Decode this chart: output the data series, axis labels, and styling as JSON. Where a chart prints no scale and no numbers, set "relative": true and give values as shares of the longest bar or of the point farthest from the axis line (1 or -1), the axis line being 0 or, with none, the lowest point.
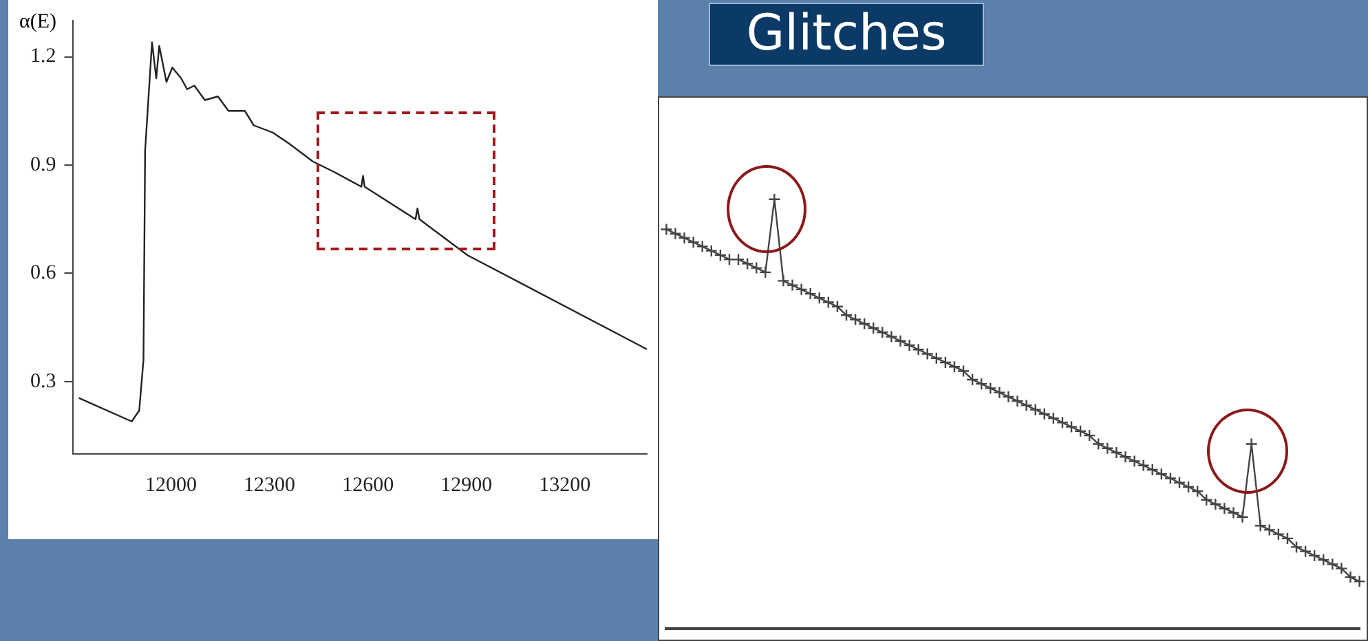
{
  "chart_data": [
    {
      "type": "line",
      "ylabel": "α(E)",
      "color": "#222222",
      "x": [
        11719,
        11880,
        11903,
        11916,
        11921,
        11942,
        11955,
        11964,
        11986,
        12004,
        12031,
        12049,
        12071,
        12103,
        12143,
        12175,
        12225,
        12252,
        12310,
        12359,
        12432,
        12499,
        12580,
        12585,
        12590,
        12745,
        12751,
        12757,
        12904,
        13450
      ],
      "values": [
        0.255,
        0.19,
        0.22,
        0.36,
        0.94,
        1.24,
        1.14,
        1.23,
        1.13,
        1.17,
        1.14,
        1.11,
        1.12,
        1.08,
        1.09,
        1.05,
        1.05,
        1.01,
        0.99,
        0.96,
        0.91,
        0.88,
        0.84,
        0.87,
        0.84,
        0.75,
        0.78,
        0.75,
        0.65,
        0.39
      ],
      "xlim": [
        11700,
        13450
      ],
      "ylim": [
        0.1,
        1.3
      ],
      "xticks": [
        12000,
        12300,
        12600,
        12900,
        13200
      ],
      "yticks": [
        0.3,
        0.6,
        0.9,
        1.2
      ]
    },
    {
      "type": "line",
      "title": "Glitches",
      "relative": true,
      "marker": "cross",
      "color": "#444444",
      "categories": [
        null,
        null,
        null,
        null,
        null,
        null,
        null,
        null,
        null,
        null,
        null,
        null,
        null,
        null,
        null,
        null,
        null,
        null,
        null,
        null,
        null,
        null,
        null,
        null,
        null,
        null,
        null,
        null,
        null,
        null,
        null,
        null,
        null,
        null,
        null,
        null,
        null,
        null,
        null,
        null,
        null,
        null,
        null,
        null,
        null,
        null,
        null,
        null,
        null,
        null,
        null,
        null,
        null,
        null,
        null,
        null,
        null,
        null,
        null,
        null,
        null,
        null,
        null,
        null,
        null,
        null,
        null,
        null,
        null,
        null,
        null,
        null,
        null,
        null,
        null,
        null,
        null,
        null
      ],
      "values": [
        0.93,
        0.92,
        0.91,
        0.9,
        0.89,
        0.88,
        0.87,
        0.86,
        0.86,
        0.85,
        0.84,
        0.83,
        1.0,
        0.81,
        0.8,
        0.79,
        0.78,
        0.77,
        0.76,
        0.75,
        0.73,
        0.72,
        0.71,
        0.7,
        0.69,
        0.68,
        0.67,
        0.66,
        0.65,
        0.64,
        0.63,
        0.62,
        0.61,
        0.6,
        0.58,
        0.57,
        0.56,
        0.55,
        0.54,
        0.53,
        0.52,
        0.51,
        0.5,
        0.49,
        0.48,
        0.47,
        0.46,
        0.45,
        0.43,
        0.42,
        0.41,
        0.4,
        0.39,
        0.38,
        0.37,
        0.36,
        0.35,
        0.34,
        0.33,
        0.32,
        0.3,
        0.29,
        0.28,
        0.27,
        0.26,
        0.43,
        0.24,
        0.23,
        0.22,
        0.21,
        0.19,
        0.18,
        0.17,
        0.16,
        0.15,
        0.14,
        0.12,
        0.11
      ]
    }
  ]
}
